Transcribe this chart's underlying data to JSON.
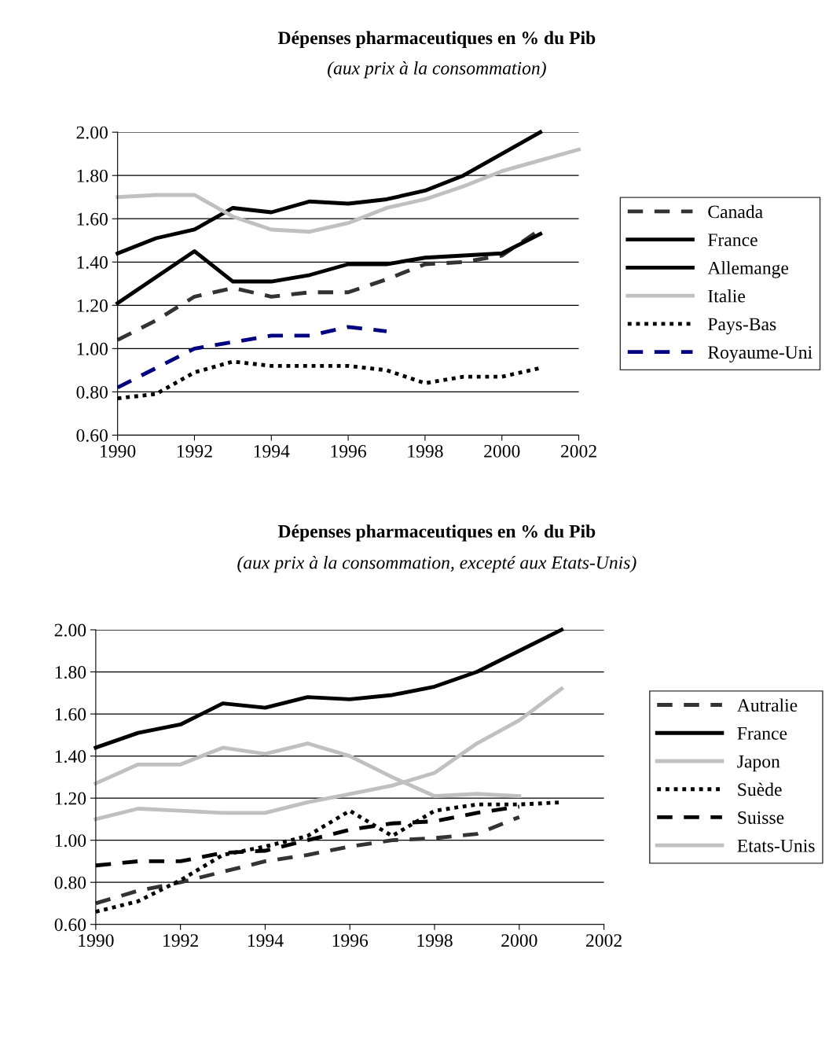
{
  "chart_data": [
    {
      "type": "line",
      "title": "Dépenses pharmaceutiques en % du Pib",
      "subtitle": "(aux prix à la consommation)",
      "x": [
        1990,
        1991,
        1992,
        1993,
        1994,
        1995,
        1996,
        1997,
        1998,
        1999,
        2000,
        2001
      ],
      "xlim": [
        1990,
        2002
      ],
      "xticks": [
        1990,
        1992,
        1994,
        1996,
        1998,
        2000,
        2002
      ],
      "ylim": [
        0.6,
        2.0
      ],
      "yticks": [
        {
          "value": 0.6,
          "label": "0.60"
        },
        {
          "value": 0.8,
          "label": "0.80"
        },
        {
          "value": 1.0,
          "label": "1.00"
        },
        {
          "value": 1.2,
          "label": "1.20"
        },
        {
          "value": 1.4,
          "label": "1.40"
        },
        {
          "value": 1.6,
          "label": "1.60"
        },
        {
          "value": 1.8,
          "label": "1.80"
        },
        {
          "value": 2.0,
          "label": "2.00"
        }
      ],
      "grid": "y",
      "legend": "right",
      "marker": "none",
      "series": [
        {
          "name": "Canada",
          "color": "#333333",
          "line_style": "dashed",
          "values": [
            1.04,
            1.13,
            1.24,
            1.28,
            1.24,
            1.26,
            1.26,
            1.32,
            1.39,
            1.4,
            1.43,
            1.55
          ]
        },
        {
          "name": "France",
          "color": "#000000",
          "line_style": "solid",
          "values": [
            1.44,
            1.51,
            1.55,
            1.65,
            1.63,
            1.68,
            1.67,
            1.69,
            1.73,
            1.8,
            1.9,
            2.0
          ]
        },
        {
          "name": "Allemange",
          "color": "#000000",
          "line_style": "solid",
          "values": [
            1.21,
            1.33,
            1.45,
            1.31,
            1.31,
            1.34,
            1.39,
            1.39,
            1.42,
            1.43,
            1.44,
            1.53
          ]
        },
        {
          "name": "Italie",
          "color": "#c0c0c0",
          "line_style": "solid",
          "x": [
            1990,
            1991,
            1992,
            1993,
            1994,
            1995,
            1996,
            1997,
            1998,
            1999,
            2000,
            2001,
            2002
          ],
          "values": [
            1.7,
            1.71,
            1.71,
            1.61,
            1.55,
            1.54,
            1.58,
            1.65,
            1.69,
            1.75,
            1.82,
            1.87,
            1.92
          ]
        },
        {
          "name": "Pays-Bas",
          "color": "#000000",
          "line_style": "dotted",
          "values": [
            0.77,
            0.79,
            0.89,
            0.94,
            0.92,
            0.92,
            0.92,
            0.9,
            0.84,
            0.87,
            0.87,
            0.91
          ]
        },
        {
          "name": "Royaume-Uni",
          "color": "#000080",
          "line_style": "dashed",
          "values": [
            0.82,
            0.91,
            1.0,
            1.03,
            1.06,
            1.06,
            1.1,
            1.08,
            null,
            null,
            null,
            null
          ]
        }
      ]
    },
    {
      "type": "line",
      "title": "Dépenses pharmaceutiques en % du Pib",
      "subtitle": "(aux prix à la consommation, excepté aux Etats-Unis)",
      "x": [
        1990,
        1991,
        1992,
        1993,
        1994,
        1995,
        1996,
        1997,
        1998,
        1999,
        2000,
        2001
      ],
      "xlim": [
        1990,
        2002
      ],
      "xticks": [
        1990,
        1992,
        1994,
        1996,
        1998,
        2000,
        2002
      ],
      "ylim": [
        0.6,
        2.0
      ],
      "yticks": [
        {
          "value": 0.6,
          "label": "0.60"
        },
        {
          "value": 0.8,
          "label": "0.80"
        },
        {
          "value": 1.0,
          "label": "1.00"
        },
        {
          "value": 1.2,
          "label": "1.20"
        },
        {
          "value": 1.4,
          "label": "1.40"
        },
        {
          "value": 1.6,
          "label": "1.60"
        },
        {
          "value": 1.8,
          "label": "1.80"
        },
        {
          "value": 2.0,
          "label": "2.00"
        }
      ],
      "grid": "y",
      "legend": "right",
      "marker": "none",
      "series": [
        {
          "name": "Autralie",
          "color": "#333333",
          "line_style": "dashed",
          "values": [
            0.7,
            0.76,
            0.8,
            0.85,
            0.9,
            0.93,
            0.97,
            1.0,
            1.01,
            1.03,
            1.11,
            null
          ]
        },
        {
          "name": "France",
          "color": "#000000",
          "line_style": "solid",
          "values": [
            1.44,
            1.51,
            1.55,
            1.65,
            1.63,
            1.68,
            1.67,
            1.69,
            1.73,
            1.8,
            1.9,
            2.0
          ]
        },
        {
          "name": "Japon",
          "color": "#c0c0c0",
          "line_style": "solid",
          "values": [
            1.27,
            1.36,
            1.36,
            1.44,
            1.41,
            1.46,
            1.4,
            1.3,
            1.21,
            1.22,
            1.21,
            null
          ]
        },
        {
          "name": "Suède",
          "color": "#000000",
          "line_style": "dotted",
          "values": [
            0.66,
            0.71,
            0.81,
            0.93,
            0.97,
            1.02,
            1.14,
            1.02,
            1.14,
            1.17,
            1.17,
            1.18
          ]
        },
        {
          "name": "Suisse",
          "color": "#000000",
          "line_style": "dashed",
          "values": [
            0.88,
            0.9,
            0.9,
            0.94,
            0.95,
            1.0,
            1.05,
            1.08,
            1.09,
            1.13,
            1.16,
            null
          ]
        },
        {
          "name": "Etats-Unis",
          "color": "#c0c0c0",
          "line_style": "solid",
          "values": [
            1.1,
            1.15,
            1.14,
            1.13,
            1.13,
            1.18,
            1.22,
            1.26,
            1.32,
            1.46,
            1.57,
            1.72
          ]
        }
      ]
    }
  ]
}
